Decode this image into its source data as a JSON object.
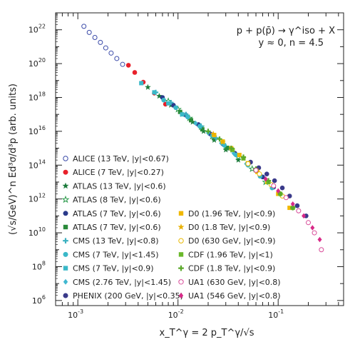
{
  "chart_data": {
    "type": "scatter",
    "title": "",
    "annotation_lines": [
      "p + p(p̄) → γ^iso + X",
      "y ≈ 0, n = 4.5"
    ],
    "xlabel": "x_T^γ = 2 p_T^γ/√s",
    "ylabel": "(√s/GeV)^n Ed³σ/d³p (arb. units)",
    "xscale": "log",
    "yscale": "log",
    "xlim": [
      0.0006,
      0.45
    ],
    "ylim": [
      500000,
      1e+23
    ],
    "x_ticks": [
      {
        "value": 0.001,
        "base": "10",
        "exp": "-3"
      },
      {
        "value": 0.01,
        "base": "10",
        "exp": "-2"
      },
      {
        "value": 0.1,
        "base": "10",
        "exp": "-1"
      }
    ],
    "y_ticks": [
      {
        "value": 1000000.0,
        "base": "10",
        "exp": "6"
      },
      {
        "value": 100000000.0,
        "base": "10",
        "exp": "8"
      },
      {
        "value": 10000000000.0,
        "base": "10",
        "exp": "10"
      },
      {
        "value": 1000000000000.0,
        "base": "10",
        "exp": "12"
      },
      {
        "value": 100000000000000.0,
        "base": "10",
        "exp": "14"
      },
      {
        "value": 1e+16,
        "base": "10",
        "exp": "16"
      },
      {
        "value": 1e+18,
        "base": "10",
        "exp": "18"
      },
      {
        "value": 1e+20,
        "base": "10",
        "exp": "20"
      },
      {
        "value": 1e+22,
        "base": "10",
        "exp": "22"
      }
    ],
    "grid": false,
    "legend_placement": "bottom-left",
    "series": [
      {
        "name": "ALICE (13 TeV, |y|<0.67)",
        "marker": "circle-open",
        "color": "#3a4aa8",
        "x": [
          0.00115,
          0.0013,
          0.00148,
          0.00168,
          0.0019,
          0.00215,
          0.00245,
          0.0028
        ],
        "y": [
          1.6e+22,
          7e+21,
          3.5e+21,
          1.8e+21,
          8.5e+20,
          4.2e+20,
          2e+20,
          9e+19
        ]
      },
      {
        "name": "ALICE (7 TeV, |y|<0.27)",
        "marker": "circle",
        "color": "#e8202a",
        "x": [
          0.0032,
          0.0037,
          0.0045,
          0.0058,
          0.0075
        ],
        "y": [
          8e+19,
          3e+19,
          8e+18,
          1.8e+18,
          4e+17
        ]
      },
      {
        "name": "ATLAS (13 TeV, |y|<0.6)",
        "marker": "star",
        "color": "#1a7a3a",
        "x": [
          0.005,
          0.0065,
          0.0085,
          0.011,
          0.014,
          0.018,
          0.023,
          0.03,
          0.04
        ],
        "y": [
          4e+18,
          1.2e+18,
          3.5e+17,
          1e+17,
          3.5e+16,
          1e+16,
          3000000000000000.0,
          800000000000000.0,
          200000000000000.0
        ]
      },
      {
        "name": "ATLAS (8 TeV, |y|<0.6)",
        "marker": "star-open",
        "color": "#2a9a4a",
        "x": [
          0.008,
          0.01,
          0.013,
          0.017,
          0.022,
          0.03,
          0.04,
          0.055,
          0.075
        ],
        "y": [
          6e+17,
          2e+17,
          6e+16,
          1.8e+16,
          5000000000000000.0,
          1200000000000000.0,
          300000000000000.0,
          60000000000000.0,
          10000000000000.0
        ]
      },
      {
        "name": "ATLAS (7 TeV, |y|<0.6)",
        "marker": "circle",
        "color": "#2a3a8a",
        "x": [
          0.007,
          0.009,
          0.012,
          0.016,
          0.021,
          0.028,
          0.037,
          0.05,
          0.07,
          0.09
        ],
        "y": [
          1e+18,
          3.5e+17,
          9e+16,
          2.5e+16,
          7000000000000000.0,
          1800000000000000.0,
          500000000000000.0,
          110000000000000.0,
          20000000000000.0,
          5000000000000.0
        ]
      },
      {
        "name": "ATLAS (7 TeV, |y|<0.6)",
        "marker": "square",
        "color": "#2a8a3a",
        "x": [
          0.0105,
          0.0135,
          0.0175,
          0.023,
          0.031
        ],
        "y": [
          1.4e+17,
          4.5e+16,
          1.3e+16,
          3800000000000000.0,
          1000000000000000.0
        ]
      },
      {
        "name": "CMS (13 TeV, |y|<0.8)",
        "marker": "plus",
        "color": "#3ab0c0",
        "x": [
          0.006,
          0.0085,
          0.012,
          0.017,
          0.024,
          0.034
        ],
        "y": [
          2e+18,
          5e+17,
          1e+17,
          2e+16,
          4000000000000000.0,
          800000000000000.0
        ]
      },
      {
        "name": "CMS (7 TeV, |y|<1.45)",
        "marker": "circle",
        "color": "#3ab8c8",
        "x": [
          0.0072,
          0.0095,
          0.0125,
          0.0165,
          0.022,
          0.029,
          0.038,
          0.05,
          0.066,
          0.087
        ],
        "y": [
          7e+17,
          2.5e+17,
          7e+16,
          2e+16,
          5500000000000000.0,
          1500000000000000.0,
          400000000000000.0,
          100000000000000.0,
          22000000000000.0,
          4500000000000.0
        ]
      },
      {
        "name": "CMS (7 TeV, |y|<0.9)",
        "marker": "square",
        "color": "#3ab8c8",
        "x": [
          0.0043,
          0.0058,
          0.008,
          0.011
        ],
        "y": [
          7e+18,
          2e+18,
          4.5e+17,
          1e+17
        ]
      },
      {
        "name": "CMS (2.76 TeV, |y|<1.45)",
        "marker": "diamond",
        "color": "#40b8d0",
        "x": [
          0.015,
          0.02,
          0.027,
          0.036,
          0.048,
          0.065
        ],
        "y": [
          3e+16,
          8000000000000000.0,
          2000000000000000.0,
          500000000000000.0,
          120000000000000.0,
          25000000000000.0
        ]
      },
      {
        "name": "PHENIX (200 GeV, |y|<0.35)",
        "marker": "circle",
        "color": "#3a3a8a",
        "x": [
          0.053,
          0.064,
          0.077,
          0.092,
          0.11,
          0.13,
          0.155,
          0.19
        ],
        "y": [
          150000000000000.0,
          70000000000000.0,
          30000000000000.0,
          12000000000000.0,
          4500000000000.0,
          1500000000000.0,
          400000000000.0,
          100000000000.0
        ]
      },
      {
        "name": "D0 (1.96 TeV, |y|<0.9)",
        "marker": "square",
        "color": "#f0b800",
        "x": [
          0.023,
          0.028,
          0.034,
          0.041,
          0.05,
          0.062,
          0.078,
          0.1,
          0.13
        ],
        "y": [
          6000000000000000.0,
          2500000000000000.0,
          1000000000000000.0,
          400000000000000.0,
          130000000000000.0,
          40000000000000.0,
          10000000000000.0,
          2000000000000.0,
          300000000000.0
        ]
      },
      {
        "name": "D0 (1.8 TeV, |y|<0.9)",
        "marker": "star",
        "color": "#e8b000",
        "x": [
          0.0225,
          0.028,
          0.035,
          0.045,
          0.06
        ],
        "y": [
          7000000000000000.0,
          2300000000000000.0,
          800000000000000.0,
          250000000000000.0,
          50000000000000.0
        ]
      },
      {
        "name": "D0 (630 GeV, |y|<0.9)",
        "marker": "circle-open",
        "color": "#e8b800",
        "x": [
          0.05,
          0.065,
          0.085,
          0.11
        ],
        "y": [
          120000000000000.0,
          30000000000000.0,
          7000000000000.0,
          1500000000000.0
        ]
      },
      {
        "name": "CDF (1.96 TeV, |y|<1)",
        "marker": "square",
        "color": "#6ab82a",
        "x": [
          0.035,
          0.045,
          0.06,
          0.08,
          0.105,
          0.14
        ],
        "y": [
          800000000000000.0,
          250000000000000.0,
          50000000000000.0,
          10000000000000.0,
          2000000000000.0,
          300000000000.0
        ]
      },
      {
        "name": "CDF (1.8 TeV, |y|<0.9)",
        "marker": "plus",
        "color": "#5aa82a",
        "x": [
          0.02,
          0.026,
          0.034,
          0.045,
          0.06,
          0.08,
          0.105,
          0.14
        ],
        "y": [
          1e+16,
          3500000000000000.0,
          1000000000000000.0,
          300000000000000.0,
          60000000000000.0,
          12000000000000.0,
          2000000000000.0,
          300000000000.0
        ]
      },
      {
        "name": "UA1 (630 GeV, |y|<0.8)",
        "marker": "circle-open",
        "color": "#d84a98",
        "x": [
          0.06,
          0.09,
          0.12,
          0.16,
          0.2,
          0.23,
          0.27
        ],
        "y": [
          50000000000000.0,
          6000000000000.0,
          1200000000000.0,
          200000000000.0,
          40000000000.0,
          10000000000.0,
          1000000000.0
        ]
      },
      {
        "name": "UA1 (546 GeV, |y|<0.8)",
        "marker": "diamond",
        "color": "#d82a88",
        "x": [
          0.075,
          0.1,
          0.14,
          0.18,
          0.22,
          0.26
        ],
        "y": [
          15000000000000.0,
          3000000000000.0,
          500000000000.0,
          100000000000.0,
          20000000000.0,
          4000000000.0
        ]
      }
    ]
  }
}
